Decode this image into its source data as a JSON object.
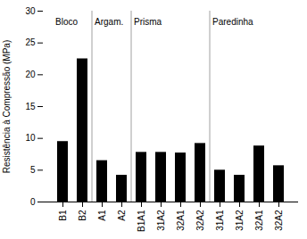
{
  "chart_data": {
    "type": "bar",
    "categories": [
      "B1",
      "B2",
      "A1",
      "A2",
      "B1A1",
      "31A2",
      "32A1",
      "32A2",
      "31A1",
      "31A2",
      "32A1",
      "32A2"
    ],
    "values": [
      9.5,
      22.5,
      6.5,
      4.2,
      7.8,
      7.8,
      7.7,
      9.2,
      5.0,
      4.2,
      8.8,
      5.7
    ],
    "ylabel": "Resistência à Compressão (MPa)",
    "ylim": [
      0,
      30
    ],
    "yticks": [
      0,
      5,
      10,
      15,
      20,
      25,
      30
    ],
    "annotations": [
      "Bloco",
      "Argam.",
      "Prisma",
      "Paredinha"
    ],
    "grid": false
  }
}
